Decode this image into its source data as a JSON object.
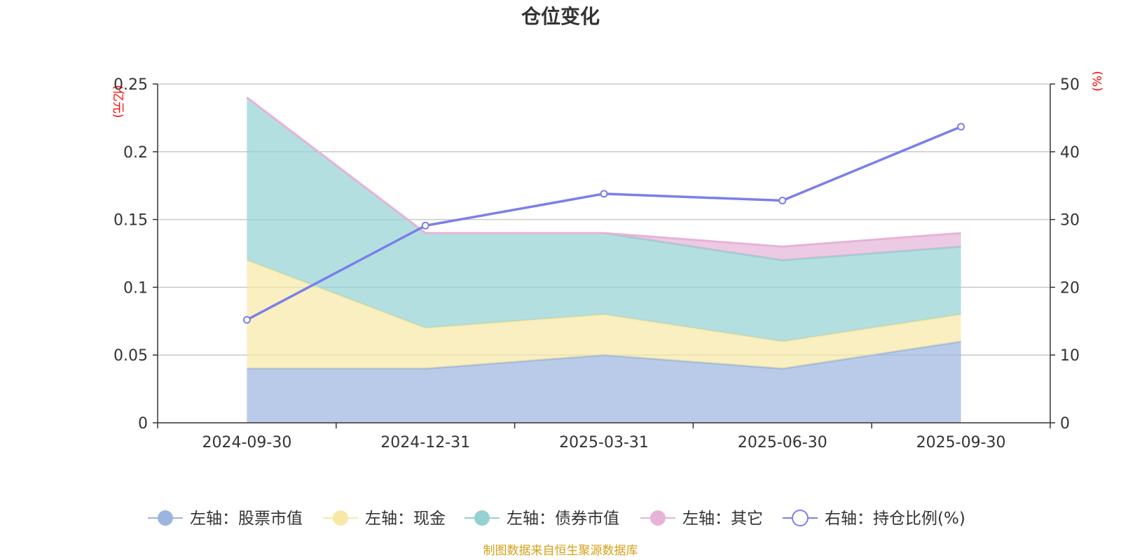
{
  "title": "仓位变化",
  "source_note": "制图数据来自恒生聚源数据库",
  "left_unit": "(亿元)",
  "right_unit": "(%)",
  "chart_data": {
    "type": "area",
    "stacked": true,
    "categories": [
      "2024-09-30",
      "2024-12-31",
      "2025-03-31",
      "2025-06-30",
      "2025-09-30"
    ],
    "series": [
      {
        "name": "左轴：股票市值",
        "axis": "left",
        "type": "area",
        "color": "#9bb5de",
        "values": [
          0.04,
          0.04,
          0.05,
          0.04,
          0.06
        ]
      },
      {
        "name": "左轴：现金",
        "axis": "left",
        "type": "area",
        "color": "#f7e8a6",
        "values": [
          0.08,
          0.03,
          0.03,
          0.02,
          0.02
        ]
      },
      {
        "name": "左轴：债券市值",
        "axis": "left",
        "type": "area",
        "color": "#94d1d3",
        "values": [
          0.12,
          0.07,
          0.06,
          0.06,
          0.05
        ]
      },
      {
        "name": "左轴：其它",
        "axis": "left",
        "type": "area",
        "color": "#e6b3d7",
        "values": [
          0.0,
          0.0,
          0.0,
          0.01,
          0.01
        ]
      },
      {
        "name": "右轴：持仓比例(%)",
        "axis": "right",
        "type": "line",
        "color": "#7b7fea",
        "values": [
          15.2,
          29.1,
          33.8,
          32.8,
          43.7
        ]
      }
    ],
    "left_axis": {
      "ylim": [
        0,
        0.25
      ],
      "ticks": [
        "0",
        "0.05",
        "0.1",
        "0.15",
        "0.2",
        "0.25"
      ]
    },
    "right_axis": {
      "ylim": [
        0,
        50
      ],
      "ticks": [
        "0",
        "10",
        "20",
        "30",
        "40",
        "50"
      ]
    },
    "grid": true,
    "legend_position": "bottom"
  }
}
